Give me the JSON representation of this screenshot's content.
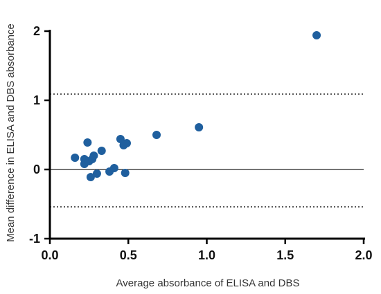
{
  "chart_data": {
    "type": "scatter",
    "title": "",
    "xlabel": "Average absorbance of ELISA and DBS",
    "ylabel": "Mean difference in ELISA and DBS absorbance",
    "xlim": [
      0,
      2
    ],
    "ylim": [
      -1,
      2
    ],
    "x_ticks": [
      "0.0",
      "0.5",
      "1.0",
      "1.5",
      "2.0"
    ],
    "y_ticks": [
      "-1",
      "0",
      "1",
      "2"
    ],
    "grid": false,
    "reference_lines": [
      {
        "y": 0,
        "style": "solid"
      },
      {
        "y": 1.09,
        "style": "dotted"
      },
      {
        "y": -0.54,
        "style": "dotted"
      }
    ],
    "series": [
      {
        "color": "#1f5f9e",
        "points": [
          {
            "x": 0.16,
            "y": 0.17
          },
          {
            "x": 0.22,
            "y": 0.08
          },
          {
            "x": 0.22,
            "y": 0.15
          },
          {
            "x": 0.24,
            "y": 0.39
          },
          {
            "x": 0.25,
            "y": 0.12
          },
          {
            "x": 0.26,
            "y": -0.11
          },
          {
            "x": 0.27,
            "y": 0.15
          },
          {
            "x": 0.28,
            "y": 0.2
          },
          {
            "x": 0.3,
            "y": -0.06
          },
          {
            "x": 0.33,
            "y": 0.27
          },
          {
            "x": 0.38,
            "y": -0.03
          },
          {
            "x": 0.41,
            "y": 0.02
          },
          {
            "x": 0.45,
            "y": 0.44
          },
          {
            "x": 0.47,
            "y": 0.35
          },
          {
            "x": 0.48,
            "y": -0.05
          },
          {
            "x": 0.49,
            "y": 0.38
          },
          {
            "x": 0.68,
            "y": 0.5
          },
          {
            "x": 0.95,
            "y": 0.61
          },
          {
            "x": 1.7,
            "y": 1.94
          }
        ]
      }
    ]
  }
}
